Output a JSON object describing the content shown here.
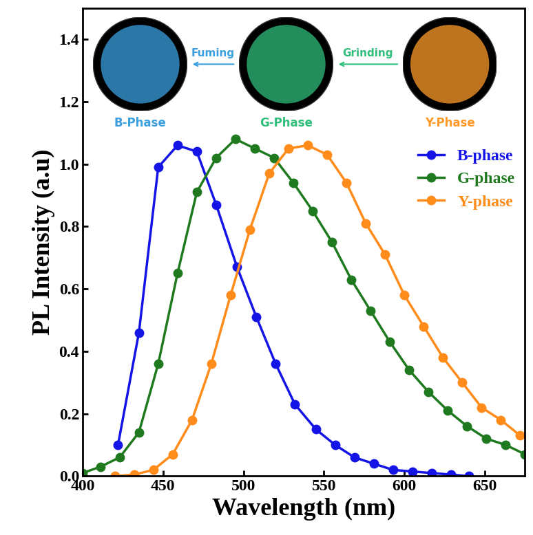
{
  "chart_data": {
    "type": "line",
    "x_label": "Wavelength (nm)",
    "y_label": "PL Intensity (a.u)",
    "xlim": [
      400,
      675
    ],
    "xticks": [
      400,
      450,
      500,
      550,
      600,
      650
    ],
    "ylim": [
      0,
      1.5
    ],
    "yticks": [
      {
        "value": 0,
        "label": "0.0"
      },
      {
        "value": 0.2,
        "label": "0.2"
      },
      {
        "value": 0.4,
        "label": "0.4"
      },
      {
        "value": 0.6,
        "label": "0.6"
      },
      {
        "value": 0.8,
        "label": "0.8"
      },
      {
        "value": 1.0,
        "label": "1.0"
      },
      {
        "value": 1.2,
        "label": "1.2"
      },
      {
        "value": 1.4,
        "label": "1.4"
      }
    ],
    "grid": false,
    "legend": "center right",
    "marker": "o",
    "line_style": "solid",
    "series": [
      {
        "name": "B-phase",
        "color": "#1414e6",
        "x": [
          422,
          435,
          447,
          459,
          471,
          483,
          496,
          508,
          520,
          532,
          545,
          557,
          569,
          581,
          593,
          605,
          617,
          629,
          640
        ],
        "values": [
          0.1,
          0.46,
          0.99,
          1.06,
          1.04,
          0.87,
          0.67,
          0.51,
          0.36,
          0.23,
          0.15,
          0.1,
          0.06,
          0.04,
          0.02,
          0.015,
          0.01,
          0.005,
          0.0
        ]
      },
      {
        "name": "G-phase",
        "color": "#1f7a1f",
        "x": [
          400,
          411,
          423,
          435,
          447,
          459,
          471,
          483,
          495,
          507,
          519,
          531,
          543,
          555,
          567,
          579,
          591,
          603,
          615,
          627,
          639,
          651,
          663,
          675
        ],
        "values": [
          0.01,
          0.03,
          0.06,
          0.14,
          0.36,
          0.65,
          0.91,
          1.02,
          1.08,
          1.05,
          1.02,
          0.94,
          0.85,
          0.75,
          0.63,
          0.53,
          0.43,
          0.34,
          0.27,
          0.21,
          0.16,
          0.12,
          0.1,
          0.07
        ]
      },
      {
        "name": "Y-phase",
        "color": "#ff8c1a",
        "x": [
          420,
          432,
          444,
          456,
          468,
          480,
          492,
          504,
          516,
          528,
          540,
          552,
          564,
          576,
          588,
          600,
          612,
          624,
          636,
          648,
          660,
          672
        ],
        "values": [
          0.0,
          0.005,
          0.02,
          0.07,
          0.18,
          0.36,
          0.58,
          0.79,
          0.97,
          1.05,
          1.06,
          1.03,
          0.94,
          0.81,
          0.71,
          0.58,
          0.48,
          0.38,
          0.3,
          0.22,
          0.18,
          0.13
        ]
      }
    ],
    "insets": [
      {
        "label": "B-Phase",
        "color": "#3aa0e0"
      },
      {
        "label": "G-Phase",
        "color": "#2fbf7a"
      },
      {
        "label": "Y-Phase",
        "color": "#ff9a2a"
      }
    ],
    "annotations": [
      "Fuming",
      "Grinding"
    ]
  }
}
